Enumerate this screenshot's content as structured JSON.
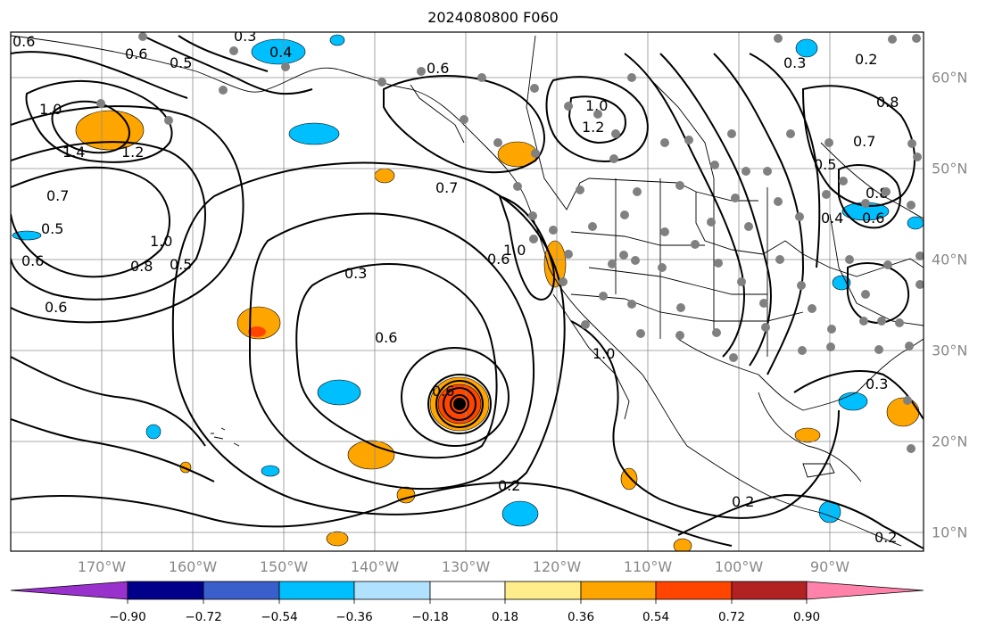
{
  "title": "2024080800 F060",
  "lon_labels": [
    "170°W",
    "160°W",
    "150°W",
    "140°W",
    "130°W",
    "120°W",
    "110°W",
    "100°W",
    "90°W"
  ],
  "lat_labels": [
    "60°N",
    "50°N",
    "40°N",
    "30°N",
    "20°N",
    "10°N"
  ],
  "contour_labels": [
    "0.6",
    "0.3",
    "0.4",
    "0.6",
    "0.5",
    "1.0",
    "1.4",
    "1.2",
    "0.7",
    "0.5",
    "0.6",
    "1.0",
    "0.8",
    "0.5",
    "0.6",
    "0.3",
    "0.6",
    "0.7",
    "1.0",
    "0.6",
    "1.2",
    "1.0",
    "0.6",
    "1.0",
    "0.3",
    "0.2",
    "0.2",
    "0.8",
    "0.7",
    "0.5",
    "0.8",
    "0.6",
    "0.4",
    "0.3",
    "0.2",
    "0.2",
    "0.6"
  ],
  "colorbar": {
    "ticks": [
      "−0.90",
      "−0.72",
      "−0.54",
      "−0.36",
      "−0.18",
      "0.18",
      "0.36",
      "0.54",
      "0.72",
      "0.90"
    ],
    "colors": [
      "#9932cc",
      "#00008b",
      "#3a5fcd",
      "#00bfff",
      "#b0e2ff",
      "#ffffff",
      "#ffec8b",
      "#ffa500",
      "#ff4500",
      "#b22222",
      "#ff82ab"
    ]
  }
}
